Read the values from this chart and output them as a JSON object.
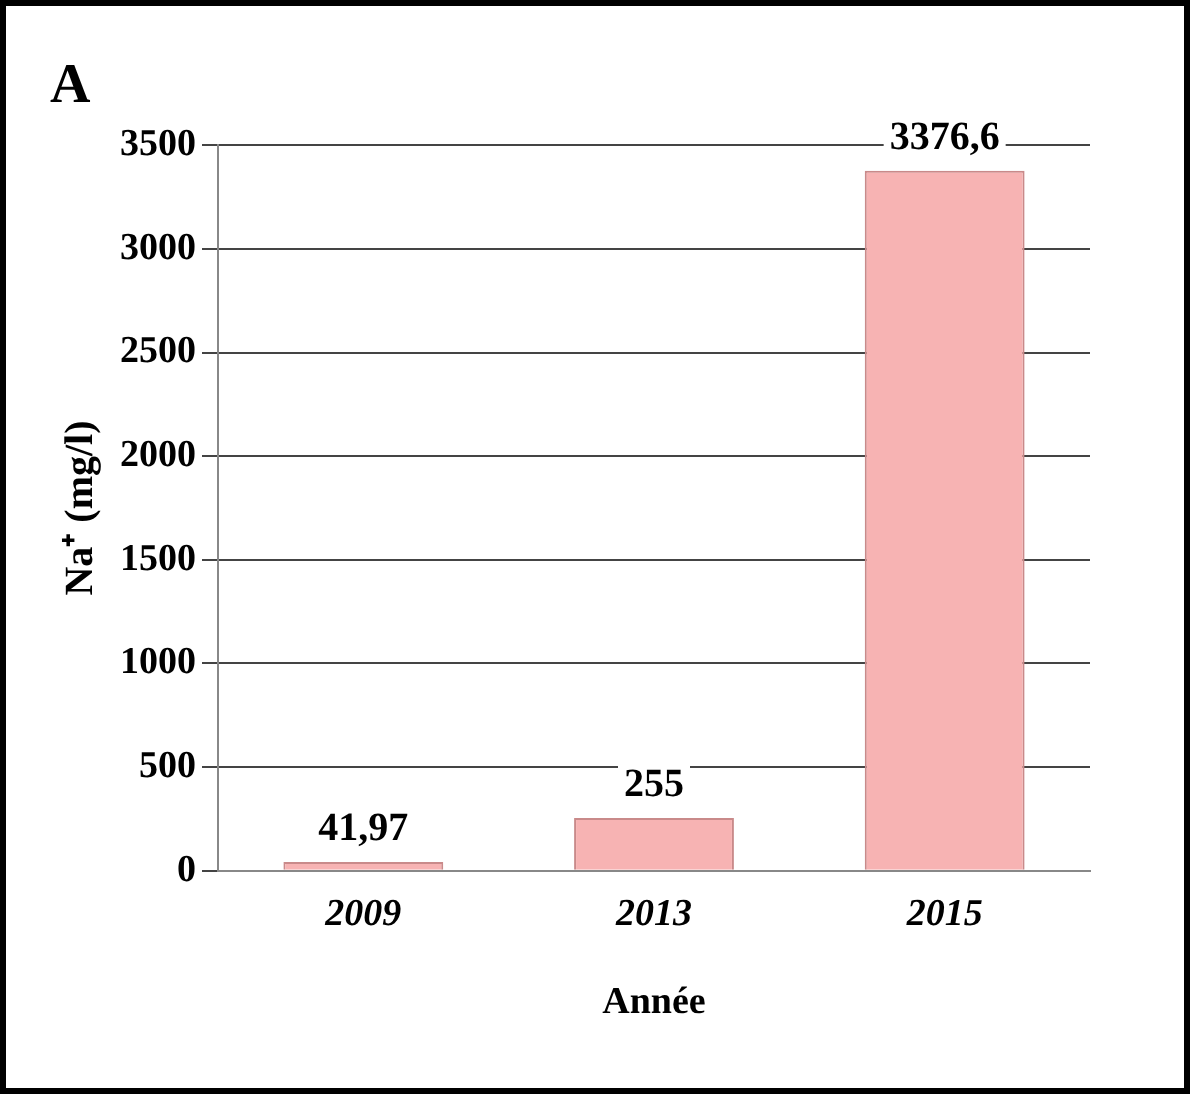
{
  "chart_data": {
    "type": "bar",
    "title": "A",
    "xlabel": "Année",
    "ylabel": "Na⁺ (mg/l)",
    "categories": [
      "2009",
      "2013",
      "2015"
    ],
    "values": [
      41.97,
      255,
      3376.6
    ],
    "value_labels": [
      "41,97",
      "255",
      "3376,6"
    ],
    "color": "#f7b3b3",
    "ylim": [
      0,
      3500
    ],
    "yticks": [
      0,
      500,
      1000,
      1500,
      2000,
      2500,
      3000,
      3500
    ],
    "grid": "y",
    "legend": false
  }
}
